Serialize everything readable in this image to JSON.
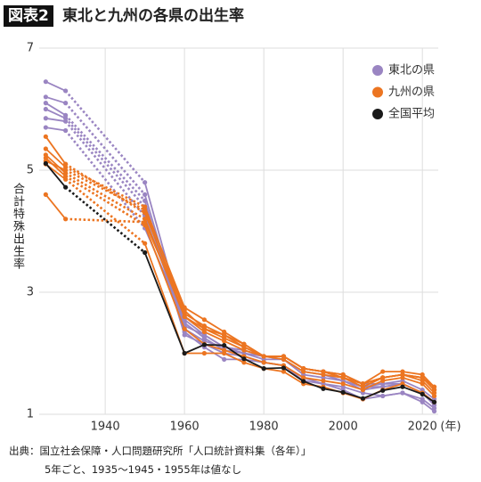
{
  "chart_data": {
    "type": "line",
    "title_tag": "図表2",
    "title": "東北と九州の各県の出生率",
    "ylabel": "合計特殊出生率",
    "x_unit": "(年)",
    "x": [
      1925,
      1930,
      1935,
      1940,
      1945,
      1950,
      1960,
      1965,
      1970,
      1975,
      1980,
      1985,
      1990,
      1995,
      2000,
      2005,
      2010,
      2015,
      2020,
      2023
    ],
    "xlim": [
      1922,
      2024
    ],
    "xticks": [
      1940,
      1960,
      1980,
      2000,
      2020
    ],
    "ylim": [
      1,
      7
    ],
    "yticks": [
      1,
      3,
      5,
      7
    ],
    "grid": true,
    "legend": "upper right",
    "series": [
      {
        "name": "東北の県",
        "color": "#9a85c2",
        "values": [
          [
            6.45,
            6.3,
            null,
            null,
            null,
            4.8,
            2.45,
            2.3,
            2.1,
            2.0,
            1.9,
            1.9,
            1.65,
            1.6,
            1.55,
            1.4,
            1.45,
            1.5,
            1.35,
            1.2
          ],
          [
            6.2,
            6.1,
            null,
            null,
            null,
            4.6,
            2.4,
            2.2,
            2.1,
            2.05,
            1.95,
            1.9,
            1.7,
            1.65,
            1.55,
            1.45,
            1.45,
            1.5,
            1.35,
            1.15
          ],
          [
            6.1,
            5.9,
            null,
            null,
            null,
            4.5,
            2.3,
            2.15,
            2.0,
            1.95,
            1.85,
            1.8,
            1.6,
            1.5,
            1.4,
            1.25,
            1.3,
            1.35,
            1.2,
            1.05
          ],
          [
            6.0,
            5.85,
            null,
            null,
            null,
            4.4,
            2.35,
            2.1,
            1.9,
            1.9,
            1.85,
            1.8,
            1.55,
            1.5,
            1.45,
            1.35,
            1.3,
            1.35,
            1.25,
            1.1
          ],
          [
            5.85,
            5.8,
            null,
            null,
            null,
            4.25,
            2.5,
            2.25,
            2.05,
            2.0,
            1.95,
            1.95,
            1.75,
            1.7,
            1.6,
            1.45,
            1.5,
            1.5,
            1.35,
            1.2
          ],
          [
            5.7,
            5.65,
            null,
            null,
            null,
            4.05,
            2.55,
            2.3,
            2.1,
            2.05,
            1.95,
            1.95,
            1.75,
            1.7,
            1.65,
            1.5,
            1.5,
            1.55,
            1.4,
            1.25
          ]
        ]
      },
      {
        "name": "九州の県",
        "color": "#ec7521",
        "values": [
          [
            5.1,
            4.85,
            null,
            null,
            null,
            3.8,
            2.0,
            2.0,
            2.0,
            1.85,
            1.75,
            1.7,
            1.5,
            1.45,
            1.35,
            1.25,
            1.4,
            1.5,
            1.35,
            1.2
          ],
          [
            5.55,
            5.1,
            null,
            null,
            null,
            4.3,
            2.7,
            2.4,
            2.3,
            2.1,
            1.95,
            1.95,
            1.75,
            1.7,
            1.65,
            1.5,
            1.6,
            1.65,
            1.6,
            1.45
          ],
          [
            5.35,
            5.05,
            null,
            null,
            null,
            4.4,
            2.75,
            2.55,
            2.35,
            2.15,
            1.95,
            1.95,
            1.75,
            1.7,
            1.6,
            1.45,
            1.6,
            1.65,
            1.55,
            1.35
          ],
          [
            5.25,
            4.95,
            null,
            null,
            null,
            4.2,
            2.6,
            2.35,
            2.2,
            2.05,
            1.95,
            1.9,
            1.7,
            1.65,
            1.6,
            1.5,
            1.6,
            1.65,
            1.6,
            1.4
          ],
          [
            5.2,
            4.9,
            null,
            null,
            null,
            4.1,
            2.4,
            2.15,
            2.05,
            1.95,
            1.85,
            1.8,
            1.6,
            1.55,
            1.5,
            1.4,
            1.55,
            1.6,
            1.5,
            1.3
          ],
          [
            5.15,
            5.0,
            null,
            null,
            null,
            4.35,
            2.6,
            2.4,
            2.25,
            2.1,
            1.95,
            1.95,
            1.75,
            1.7,
            1.65,
            1.5,
            1.7,
            1.7,
            1.65,
            1.45
          ],
          [
            4.6,
            4.2,
            null,
            null,
            null,
            4.15,
            2.65,
            2.45,
            2.3,
            2.15,
            1.95,
            1.95,
            1.75,
            1.7,
            1.6,
            1.5,
            1.6,
            1.65,
            1.6,
            1.4
          ]
        ]
      },
      {
        "name": "全国平均",
        "color": "#1a1a1a",
        "values": [
          [
            5.11,
            4.72,
            null,
            null,
            null,
            3.65,
            2.0,
            2.14,
            2.13,
            1.91,
            1.75,
            1.76,
            1.54,
            1.42,
            1.36,
            1.26,
            1.39,
            1.45,
            1.33,
            1.2
          ]
        ]
      }
    ],
    "source": "出典：国立社会保障・人口問題研究所「人口統計資料集（各年）」",
    "note": "5年ごと、1935〜1945・1955年は値なし"
  }
}
